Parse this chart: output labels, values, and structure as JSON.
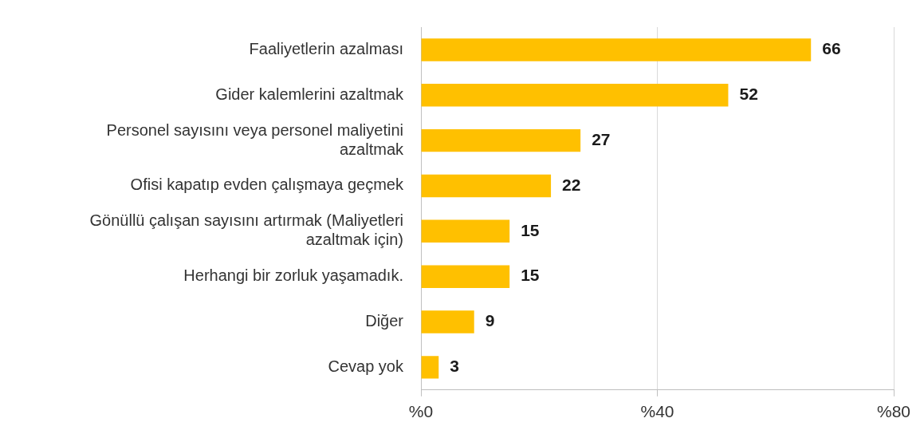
{
  "chart_data": {
    "type": "bar",
    "orientation": "horizontal",
    "categories": [
      "Faaliyetlerin azalması",
      "Gider kalemlerini azaltmak",
      "Personel sayısını veya personel maliyetini azaltmak",
      "Ofisi kapatıp evden çalışmaya geçmek",
      "Gönüllü çalışan sayısını artırmak (Maliyetleri azaltmak için)",
      "Herhangi bir zorluk yaşamadık.",
      "Diğer",
      "Cevap yok"
    ],
    "values": [
      66,
      52,
      27,
      22,
      15,
      15,
      9,
      3
    ],
    "color": "#ffc000",
    "xlim": [
      0,
      80
    ],
    "xticks": [
      {
        "value": 0,
        "label": "%0"
      },
      {
        "value": 40,
        "label": "%40"
      },
      {
        "value": 80,
        "label": "%80"
      }
    ],
    "grid": "x",
    "data_labels": true,
    "legend": false
  }
}
